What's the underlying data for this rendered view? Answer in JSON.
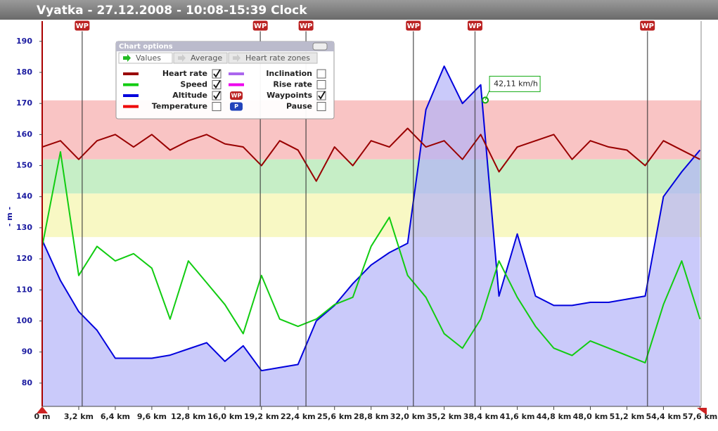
{
  "chart_data": {
    "type": "line",
    "title": "Vyatka - 27.12.2008 - 10:08-15:39 Clock",
    "y_label": "- m -",
    "xlim": [
      0,
      57.7
    ],
    "xticks": [
      {
        "value": 0,
        "label": "0 m"
      },
      {
        "value": 3.2,
        "label": "3,2 km"
      },
      {
        "value": 6.4,
        "label": "6,4 km"
      },
      {
        "value": 9.6,
        "label": "9,6 km"
      },
      {
        "value": 12.8,
        "label": "12,8 km"
      },
      {
        "value": 16.0,
        "label": "16,0 km"
      },
      {
        "value": 19.2,
        "label": "19,2 km"
      },
      {
        "value": 22.4,
        "label": "22,4 km"
      },
      {
        "value": 25.6,
        "label": "25,6 km"
      },
      {
        "value": 28.8,
        "label": "28,8 km"
      },
      {
        "value": 32.0,
        "label": "32,0 km"
      },
      {
        "value": 35.2,
        "label": "35,2 km"
      },
      {
        "value": 38.4,
        "label": "38,4 km"
      },
      {
        "value": 41.6,
        "label": "41,6 km"
      },
      {
        "value": 44.8,
        "label": "44,8 km"
      },
      {
        "value": 48.0,
        "label": "48,0 km"
      },
      {
        "value": 51.2,
        "label": "51,2 km"
      },
      {
        "value": 54.4,
        "label": "54,4 km"
      },
      {
        "value": 57.6,
        "label": "57,6 km"
      }
    ],
    "ylim": [
      72.5,
      194.7
    ],
    "yticks": [
      80,
      90,
      100,
      110,
      120,
      130,
      140,
      150,
      160,
      170,
      180,
      190
    ],
    "y2lim": [
      0,
      52.2
    ],
    "zones": [
      {
        "from": 152,
        "to": 171,
        "color": "#f9c4c4"
      },
      {
        "from": 141,
        "to": 152,
        "color": "#c6eec6"
      },
      {
        "from": 127,
        "to": 141,
        "color": "#f8f8c4"
      }
    ],
    "x": [
      0,
      1.6,
      3.2,
      4.8,
      6.4,
      8.0,
      9.6,
      11.2,
      12.8,
      14.4,
      16.0,
      17.6,
      19.2,
      20.8,
      22.4,
      24.0,
      25.6,
      27.2,
      28.8,
      30.4,
      32.0,
      33.6,
      35.2,
      36.8,
      38.4,
      40.0,
      41.6,
      43.2,
      44.8,
      46.4,
      48.0,
      49.6,
      51.2,
      52.8,
      54.4,
      56.0,
      57.6
    ],
    "series": [
      {
        "name": "Altitude",
        "color": "#0000dd",
        "area": "#b4b4f8",
        "values": [
          126,
          113,
          103,
          97,
          88,
          88,
          88,
          89,
          91,
          93,
          87,
          92,
          84,
          85,
          86,
          100,
          105,
          112,
          118,
          122,
          125,
          168,
          182,
          170,
          176,
          108,
          128,
          108,
          105,
          105,
          106,
          106,
          107,
          108,
          140,
          148,
          155
        ]
      },
      {
        "name": "Speed",
        "color": "#11cc11",
        "axis": "y2",
        "values": [
          22,
          35,
          18,
          22,
          20,
          21,
          19,
          12,
          20,
          17,
          14,
          10,
          18,
          12,
          11,
          12,
          14,
          15,
          22,
          26,
          18,
          15,
          10,
          8,
          12,
          20,
          15,
          11,
          8,
          7,
          9,
          8,
          7,
          6,
          14,
          20,
          12
        ]
      },
      {
        "name": "Heart rate",
        "color": "#990000",
        "values": [
          156,
          158,
          152,
          158,
          160,
          156,
          160,
          155,
          158,
          160,
          157,
          156,
          150,
          158,
          155,
          145,
          156,
          150,
          158,
          156,
          162,
          156,
          158,
          152,
          160,
          148,
          156,
          158,
          160,
          152,
          158,
          156,
          155,
          150,
          158,
          155,
          152
        ]
      }
    ],
    "annotation": {
      "text": "42,11 km/h",
      "x": 38.8,
      "value": 42.11
    },
    "waypoint_label": "WP",
    "pause_label": "P",
    "waypoints": [
      3.5,
      19.1,
      23.1,
      32.5,
      37.9,
      53.0
    ],
    "options": {
      "title": "Chart options",
      "tabs": [
        "Values",
        "Average",
        "Heart rate zones"
      ],
      "left": [
        {
          "name": "Heart rate",
          "color": "#990000",
          "checked": true
        },
        {
          "name": "Speed",
          "color": "#11cc11",
          "checked": true
        },
        {
          "name": "Altitude",
          "color": "#0000dd",
          "checked": true
        },
        {
          "name": "Temperature",
          "color": "#ee0000",
          "checked": false
        }
      ],
      "right": [
        {
          "name": "Inclination",
          "color": "#aa66ee",
          "checked": false
        },
        {
          "name": "Rise rate",
          "color": "#ee00ee",
          "checked": false
        },
        {
          "name": "Waypoints",
          "icon": "WP",
          "checked": true
        },
        {
          "name": "Pause",
          "icon": "P",
          "checked": false
        }
      ]
    }
  }
}
